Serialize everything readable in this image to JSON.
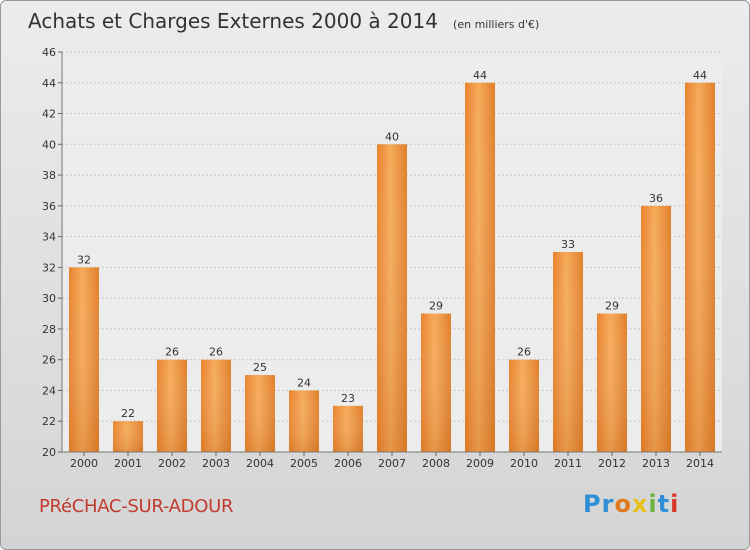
{
  "title": "Achats et Charges Externes 2000 à 2014",
  "unit": "(en milliers d'€)",
  "commune": "PRéCHAC-SUR-ADOUR",
  "logo": {
    "p1": "Pr",
    "p2": "o",
    "p3": "x",
    "p4": "i",
    "p5": "t",
    "p6": "i"
  },
  "colors": {
    "bar": "#f0a04b",
    "bar_dark": "#d9741f",
    "commune": "#c13b2e"
  },
  "chart_data": {
    "type": "bar",
    "title": "Achats et Charges Externes 2000 à 2014",
    "categories": [
      "2000",
      "2001",
      "2002",
      "2003",
      "2004",
      "2005",
      "2006",
      "2007",
      "2008",
      "2009",
      "2010",
      "2011",
      "2012",
      "2013",
      "2014"
    ],
    "values": [
      32,
      22,
      26,
      26,
      25,
      24,
      23,
      40,
      29,
      44,
      26,
      33,
      29,
      36,
      44
    ],
    "ylim": [
      20,
      46
    ],
    "yticks": [
      20,
      22,
      24,
      26,
      28,
      30,
      32,
      34,
      36,
      38,
      40,
      42,
      44,
      46
    ],
    "grid": true,
    "xlabel": "",
    "ylabel": ""
  }
}
